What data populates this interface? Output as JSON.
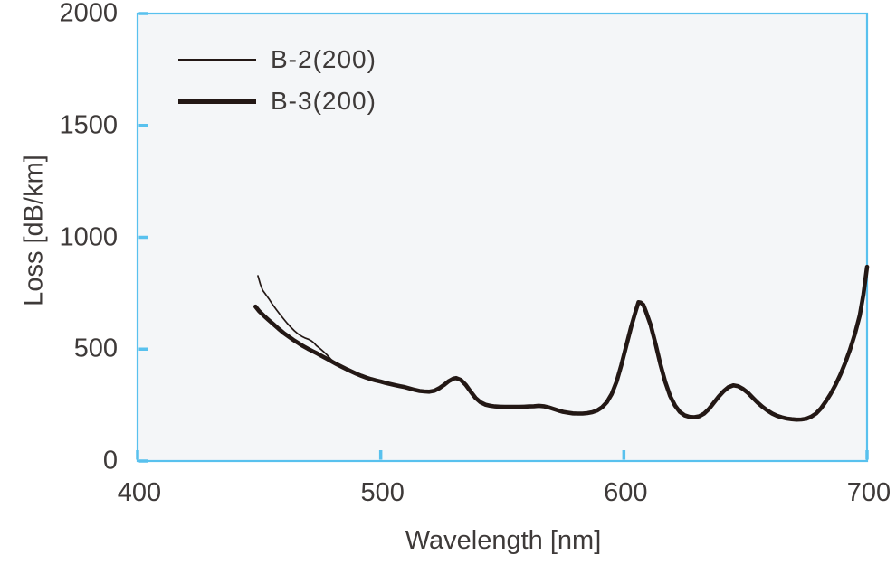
{
  "chart_data": {
    "type": "line",
    "title": "",
    "xlabel": "Wavelength [nm]",
    "ylabel": "Loss [dB/km]",
    "xlim": [
      400,
      700
    ],
    "ylim": [
      0,
      2000
    ],
    "x_ticks": [
      400,
      500,
      600,
      700
    ],
    "y_ticks": [
      0,
      500,
      1000,
      1500,
      2000
    ],
    "grid": false,
    "legend_position": "top-left-inside",
    "axis_color": "#58c1ee",
    "plot_bg_color": "#f4f6f8",
    "line_color": "#231815",
    "text_color": "#3e3a39",
    "series": [
      {
        "name": "B-2(200)",
        "style": "thin",
        "points": [
          [
            449.5,
            828
          ],
          [
            450.5,
            790
          ],
          [
            451.5,
            762
          ],
          [
            452.5,
            748
          ],
          [
            454,
            725
          ],
          [
            455.5,
            700
          ],
          [
            457,
            678
          ],
          [
            458.5,
            656
          ],
          [
            460,
            636
          ],
          [
            461.5,
            616
          ],
          [
            463,
            598
          ],
          [
            464.5,
            582
          ],
          [
            466,
            568
          ],
          [
            467.5,
            557
          ],
          [
            469,
            549
          ],
          [
            470.5,
            543
          ],
          [
            471.5,
            537
          ],
          [
            472.5,
            528
          ],
          [
            473.5,
            516
          ],
          [
            475,
            503
          ],
          [
            476.5,
            489
          ],
          [
            478,
            473
          ],
          [
            479.5,
            455
          ],
          [
            481,
            441
          ]
        ]
      },
      {
        "name": "B-3(200)",
        "style": "thick",
        "points": [
          [
            448.5,
            690
          ],
          [
            450,
            670
          ],
          [
            452,
            649
          ],
          [
            454,
            629
          ],
          [
            456,
            610
          ],
          [
            458,
            591
          ],
          [
            460,
            573
          ],
          [
            462,
            557
          ],
          [
            464,
            542
          ],
          [
            466,
            528
          ],
          [
            468,
            514
          ],
          [
            470,
            502
          ],
          [
            472,
            491
          ],
          [
            474,
            480
          ],
          [
            476,
            468
          ],
          [
            478,
            456
          ],
          [
            480,
            444
          ],
          [
            482,
            432
          ],
          [
            484,
            421
          ],
          [
            486,
            410
          ],
          [
            488,
            400
          ],
          [
            490,
            390
          ],
          [
            492,
            381
          ],
          [
            494,
            373
          ],
          [
            496,
            366
          ],
          [
            498,
            360
          ],
          [
            500,
            355
          ],
          [
            502,
            349
          ],
          [
            504,
            344
          ],
          [
            506,
            339
          ],
          [
            508,
            334
          ],
          [
            510,
            330
          ],
          [
            512,
            324
          ],
          [
            514,
            318
          ],
          [
            516,
            313
          ],
          [
            518,
            311
          ],
          [
            520,
            310
          ],
          [
            522,
            314
          ],
          [
            524,
            325
          ],
          [
            526,
            340
          ],
          [
            528,
            357
          ],
          [
            530,
            369
          ],
          [
            531,
            371
          ],
          [
            533,
            362
          ],
          [
            535,
            340
          ],
          [
            537,
            310
          ],
          [
            539,
            282
          ],
          [
            541,
            263
          ],
          [
            543,
            252
          ],
          [
            545,
            247
          ],
          [
            547,
            244
          ],
          [
            549,
            243
          ],
          [
            551,
            242
          ],
          [
            553,
            242
          ],
          [
            555,
            242
          ],
          [
            557,
            242
          ],
          [
            559,
            243
          ],
          [
            561,
            244
          ],
          [
            563,
            245
          ],
          [
            565,
            247
          ],
          [
            567,
            245
          ],
          [
            569,
            240
          ],
          [
            571,
            233
          ],
          [
            573,
            226
          ],
          [
            575,
            220
          ],
          [
            577,
            216
          ],
          [
            579,
            213
          ],
          [
            581,
            212
          ],
          [
            583,
            212
          ],
          [
            585,
            214
          ],
          [
            587,
            218
          ],
          [
            589,
            226
          ],
          [
            591,
            240
          ],
          [
            593,
            263
          ],
          [
            595,
            300
          ],
          [
            597,
            355
          ],
          [
            599,
            430
          ],
          [
            601,
            515
          ],
          [
            603,
            600
          ],
          [
            605,
            675
          ],
          [
            606,
            710
          ],
          [
            607,
            708
          ],
          [
            608,
            698
          ],
          [
            609,
            670
          ],
          [
            611,
            608
          ],
          [
            613,
            524
          ],
          [
            615,
            434
          ],
          [
            617,
            354
          ],
          [
            619,
            291
          ],
          [
            621,
            248
          ],
          [
            623,
            220
          ],
          [
            625,
            204
          ],
          [
            627,
            197
          ],
          [
            629,
            196
          ],
          [
            631,
            200
          ],
          [
            633,
            212
          ],
          [
            635,
            233
          ],
          [
            637,
            260
          ],
          [
            639,
            288
          ],
          [
            641,
            312
          ],
          [
            643,
            330
          ],
          [
            645,
            338
          ],
          [
            647,
            334
          ],
          [
            649,
            322
          ],
          [
            651,
            305
          ],
          [
            653,
            283
          ],
          [
            655,
            261
          ],
          [
            657,
            242
          ],
          [
            659,
            226
          ],
          [
            661,
            212
          ],
          [
            663,
            202
          ],
          [
            665,
            195
          ],
          [
            667,
            190
          ],
          [
            669,
            187
          ],
          [
            671,
            185
          ],
          [
            673,
            186
          ],
          [
            675,
            189
          ],
          [
            677,
            198
          ],
          [
            679,
            212
          ],
          [
            681,
            235
          ],
          [
            683,
            265
          ],
          [
            685,
            300
          ],
          [
            687,
            340
          ],
          [
            689,
            385
          ],
          [
            691,
            438
          ],
          [
            693,
            498
          ],
          [
            695,
            568
          ],
          [
            697,
            650
          ],
          [
            698.5,
            745
          ],
          [
            700,
            868
          ]
        ]
      }
    ]
  }
}
